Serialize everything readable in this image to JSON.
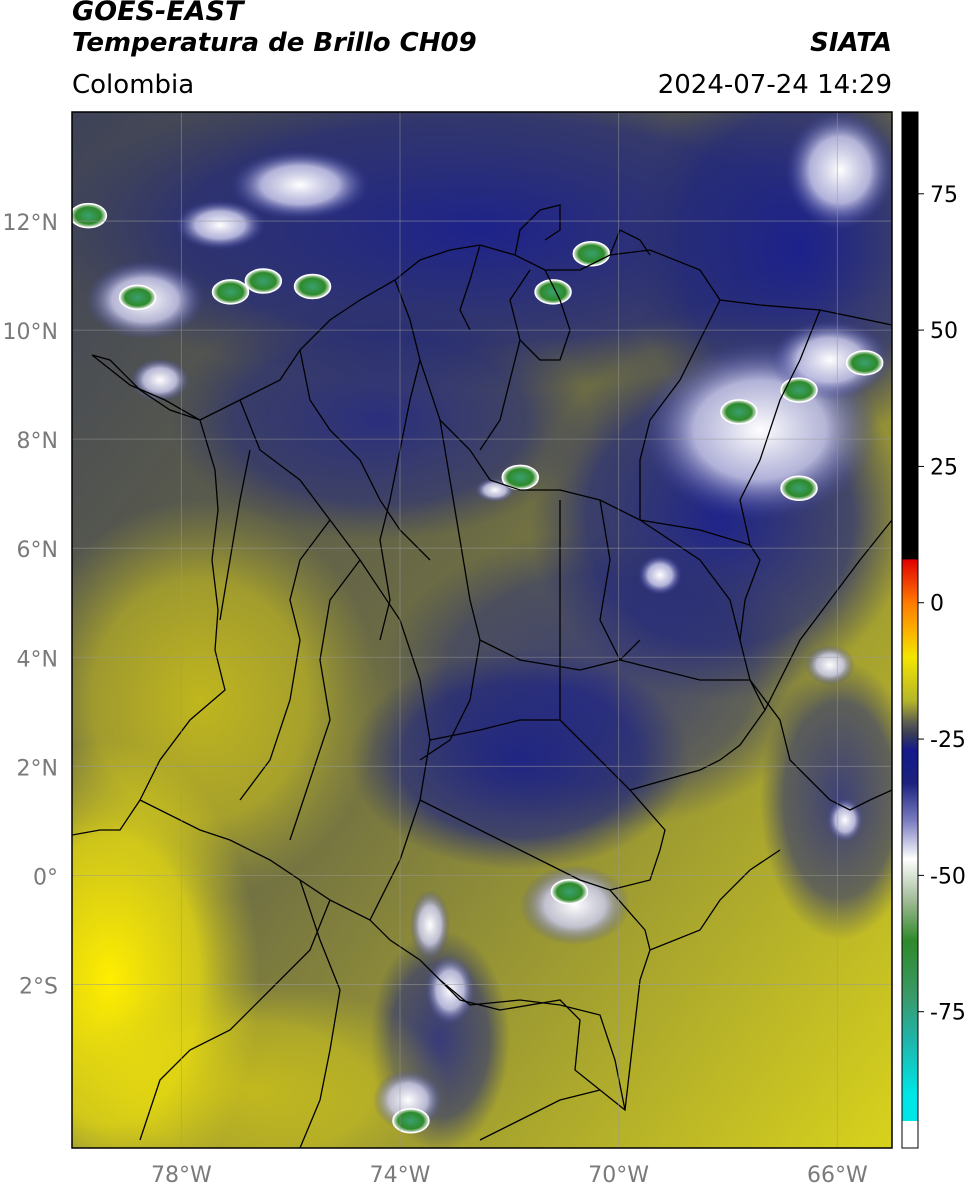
{
  "header": {
    "satellite": "GOES-EAST",
    "product": "Temperatura de Brillo CH09",
    "agency": "SIATA",
    "region": "Colombia",
    "datetime": "2024-07-24 14:29"
  },
  "map": {
    "extent": {
      "lon_min": -80,
      "lon_max": -65,
      "lat_min": -5,
      "lat_max": 14
    },
    "lat_ticks": [
      {
        "value": 12,
        "label": "12°N"
      },
      {
        "value": 10,
        "label": "10°N"
      },
      {
        "value": 8,
        "label": "8°N"
      },
      {
        "value": 6,
        "label": "6°N"
      },
      {
        "value": 4,
        "label": "4°N"
      },
      {
        "value": 2,
        "label": "2°N"
      },
      {
        "value": 0,
        "label": "0°"
      },
      {
        "value": -2,
        "label": "2°S"
      }
    ],
    "lon_ticks": [
      {
        "value": -78,
        "label": "78°W"
      },
      {
        "value": -74,
        "label": "74°W"
      },
      {
        "value": -70,
        "label": "70°W"
      },
      {
        "value": -66,
        "label": "66°W"
      }
    ],
    "grid": true,
    "cold_cloud_cores": [
      {
        "lon": -75.6,
        "lat": 10.8
      },
      {
        "lon": -76.5,
        "lat": 10.9
      },
      {
        "lon": -77.1,
        "lat": 10.7
      },
      {
        "lon": -78.8,
        "lat": 10.6
      },
      {
        "lon": -79.7,
        "lat": 12.1
      },
      {
        "lon": -70.5,
        "lat": 11.4
      },
      {
        "lon": -71.2,
        "lat": 10.7
      },
      {
        "lon": -67.8,
        "lat": 8.5
      },
      {
        "lon": -66.7,
        "lat": 8.9
      },
      {
        "lon": -65.5,
        "lat": 9.4
      },
      {
        "lon": -66.7,
        "lat": 7.1
      },
      {
        "lon": -73.8,
        "lat": -4.5
      },
      {
        "lon": -70.9,
        "lat": -0.3
      },
      {
        "lon": -71.8,
        "lat": 7.3
      }
    ]
  },
  "colorbar": {
    "range": [
      -100,
      90
    ],
    "ticks": [
      {
        "value": 75,
        "label": "75"
      },
      {
        "value": 50,
        "label": "50"
      },
      {
        "value": 25,
        "label": "25"
      },
      {
        "value": 0,
        "label": "0"
      },
      {
        "value": -25,
        "label": "-25"
      },
      {
        "value": -50,
        "label": "-50"
      },
      {
        "value": -75,
        "label": "-75"
      }
    ],
    "stops": [
      {
        "value": 90,
        "color": "#000000"
      },
      {
        "value": 8,
        "color": "#000000"
      },
      {
        "value": 7.9,
        "color": "#e00000"
      },
      {
        "value": 0,
        "color": "#ff7a00"
      },
      {
        "value": -10,
        "color": "#f4e600"
      },
      {
        "value": -18,
        "color": "#b5b52a"
      },
      {
        "value": -22,
        "color": "#5c5c52"
      },
      {
        "value": -24,
        "color": "#3a3d55"
      },
      {
        "value": -27,
        "color": "#141a8a"
      },
      {
        "value": -33,
        "color": "#1a227e"
      },
      {
        "value": -40,
        "color": "#7a7cc0"
      },
      {
        "value": -47,
        "color": "#ffffff"
      },
      {
        "value": -55,
        "color": "#9bb890"
      },
      {
        "value": -62,
        "color": "#2e8a2a"
      },
      {
        "value": -72,
        "color": "#3a9a68"
      },
      {
        "value": -80,
        "color": "#20b4a8"
      },
      {
        "value": -90,
        "color": "#00e5e5"
      },
      {
        "value": -95,
        "color": "#00e5e5"
      },
      {
        "value": -95.1,
        "color": "#ffffff"
      },
      {
        "value": -100,
        "color": "#ffffff"
      }
    ]
  },
  "colors": {
    "warm_surface": "#c9c422",
    "hot_surface": "#f7e800",
    "mid_cloud": "#3c4060",
    "cold_cloud": "#1b238a",
    "border_line": "#000000",
    "grid_line": "#9a9a9a",
    "tick_label": "#7a7a7a"
  }
}
